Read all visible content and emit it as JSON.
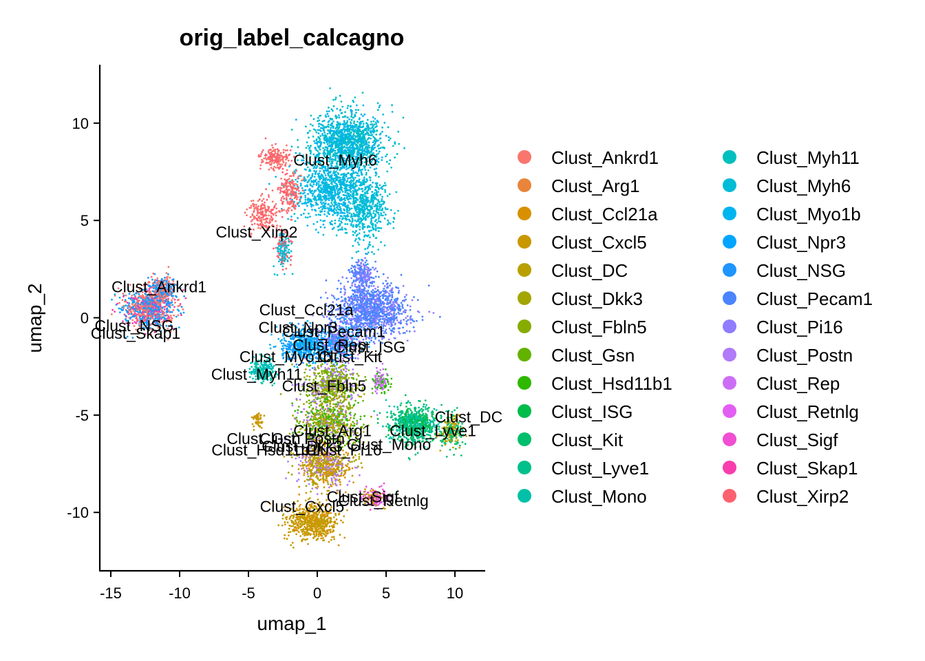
{
  "chart_data": {
    "type": "scatter",
    "title": "orig_label_calcagno",
    "xlabel": "umap_1",
    "ylabel": "umap_2",
    "xlim": [
      -15.8,
      12.2
    ],
    "ylim": [
      -13,
      13
    ],
    "x_ticks": [
      -15,
      -10,
      -5,
      0,
      5,
      10
    ],
    "y_ticks": [
      -10,
      -5,
      0,
      5,
      10
    ],
    "x_tick_labels": [
      "-15",
      "-10",
      "-5",
      "0",
      "5",
      "10"
    ],
    "y_tick_labels": [
      "-10",
      "-5",
      "0",
      "5",
      "10"
    ],
    "grid": false,
    "legend_position": "right",
    "legend_columns": 2,
    "series": [
      {
        "name": "Clust_Ankrd1",
        "color": "#F8766D"
      },
      {
        "name": "Clust_Arg1",
        "color": "#EC8239"
      },
      {
        "name": "Clust_Ccl21a",
        "color": "#DB8E00"
      },
      {
        "name": "Clust_Cxcl5",
        "color": "#C79800"
      },
      {
        "name": "Clust_DC",
        "color": "#AEA200"
      },
      {
        "name": "Clust_Dkk3",
        "color": "#8FAA00"
      },
      {
        "name": "Clust_Fbln5",
        "color": "#64B200"
      },
      {
        "name": "Clust_Gsn",
        "color": "#00B81B"
      },
      {
        "name": "Clust_Hsd11b1",
        "color": "#00BD5C"
      },
      {
        "name": "Clust_ISG",
        "color": "#00C085"
      },
      {
        "name": "Clust_Kit",
        "color": "#00C1A7"
      },
      {
        "name": "Clust_Lyve1",
        "color": "#00BFC4"
      },
      {
        "name": "Clust_Mono",
        "color": "#00BADE"
      },
      {
        "name": "Clust_Myh11",
        "color": "#00B2F3"
      },
      {
        "name": "Clust_Myh6",
        "color": "#00A6FF"
      },
      {
        "name": "Clust_Myo1b",
        "color": "#7C96FF"
      },
      {
        "name": "Clust_Npr3",
        "color": "#B385FF"
      },
      {
        "name": "Clust_NSG",
        "color": "#D874FD"
      },
      {
        "name": "Clust_Pecam1",
        "color": "#EF67EB"
      },
      {
        "name": "Clust_Pi16",
        "color": "#FD61D3"
      },
      {
        "name": "Clust_Postn",
        "color": "#FF63B6"
      },
      {
        "name": "Clust_Rep",
        "color": "#FF6B94"
      },
      {
        "name": "Clust_Retnlg",
        "color": "#FF6C91"
      },
      {
        "name": "Clust_Sigf",
        "color": "#FF62BC"
      },
      {
        "name": "Clust_Skap1",
        "color": "#FF5AAE"
      },
      {
        "name": "Clust_Xirp2",
        "color": "#FB617A"
      }
    ],
    "legend_colors": [
      "#F8766D",
      "#E8853A",
      "#D89000",
      "#C99800",
      "#B9A000",
      "#A3A500",
      "#87AC00",
      "#64B200",
      "#2EB800",
      "#00BC4A",
      "#00BE6C",
      "#00C08B",
      "#00C1A7",
      "#00BFBF",
      "#00BCD6",
      "#00B4EF",
      "#00A5FF",
      "#1E95FF",
      "#4B84FF",
      "#8F7CFF",
      "#B07AF8",
      "#CC6EF5",
      "#E35EF2",
      "#F04FD4",
      "#F83EAD",
      "#FD6170"
    ],
    "legend_entries": [
      "Clust_Ankrd1",
      "Clust_Arg1",
      "Clust_Ccl21a",
      "Clust_Cxcl5",
      "Clust_DC",
      "Clust_Dkk3",
      "Clust_Fbln5",
      "Clust_Gsn",
      "Clust_Hsd11b1",
      "Clust_ISG",
      "Clust_Kit",
      "Clust_Lyve1",
      "Clust_Mono",
      "Clust_Myh11",
      "Clust_Myh6",
      "Clust_Myo1b",
      "Clust_Npr3",
      "Clust_NSG",
      "Clust_Pecam1",
      "Clust_Pi16",
      "Clust_Postn",
      "Clust_Rep",
      "Clust_Retnlg",
      "Clust_Sigf",
      "Clust_Skap1",
      "Clust_Xirp2"
    ],
    "annotations": [
      {
        "text": "Clust_Myh6",
        "x": 1.3,
        "y": 8.1
      },
      {
        "text": "Clust_Xirp2",
        "x": -4.4,
        "y": 4.4
      },
      {
        "text": "Clust_Ankrd1",
        "x": -11.5,
        "y": 1.6
      },
      {
        "text": "Clust_NSG",
        "x": -13.3,
        "y": -0.4
      },
      {
        "text": "Clust_Skap1",
        "x": -13.2,
        "y": -0.8
      },
      {
        "text": "Clust_Ccl21a",
        "x": -0.8,
        "y": 0.4
      },
      {
        "text": "Clust_Npr3",
        "x": -1.4,
        "y": -0.5
      },
      {
        "text": "Clust_Pecam1",
        "x": 1.2,
        "y": -0.7
      },
      {
        "text": "Clust_Rep",
        "x": 0.9,
        "y": -1.4
      },
      {
        "text": "Clust_ISG",
        "x": 3.8,
        "y": -1.5
      },
      {
        "text": "Clust_Myo1b",
        "x": -2.3,
        "y": -2.0
      },
      {
        "text": "Clust_Kit",
        "x": 2.4,
        "y": -2.0
      },
      {
        "text": "Clust_Myh11",
        "x": -4.4,
        "y": -2.9
      },
      {
        "text": "Clust_Fbln5",
        "x": 0.5,
        "y": -3.5
      },
      {
        "text": "Clust_DC",
        "x": 11.0,
        "y": -5.1
      },
      {
        "text": "Clust_Arg1",
        "x": 1.1,
        "y": -5.8
      },
      {
        "text": "Clust_Lyve1",
        "x": 8.4,
        "y": -5.8
      },
      {
        "text": "Clust_Gsn",
        "x": -3.9,
        "y": -6.2
      },
      {
        "text": "Clust_Postn",
        "x": -1.1,
        "y": -6.2
      },
      {
        "text": "Clust_Mono",
        "x": 5.2,
        "y": -6.5
      },
      {
        "text": "Clust_Hsd11b1",
        "x": -3.8,
        "y": -6.8
      },
      {
        "text": "Clust_Dkk3",
        "x": -1.1,
        "y": -6.6
      },
      {
        "text": "Clust_Pi16",
        "x": 1.9,
        "y": -6.8
      },
      {
        "text": "Clust_Sigf",
        "x": 3.3,
        "y": -9.2
      },
      {
        "text": "Clust_Cxcl5",
        "x": -1.1,
        "y": -9.7
      },
      {
        "text": "Clust_Retnlg",
        "x": 4.8,
        "y": -9.4
      }
    ]
  }
}
